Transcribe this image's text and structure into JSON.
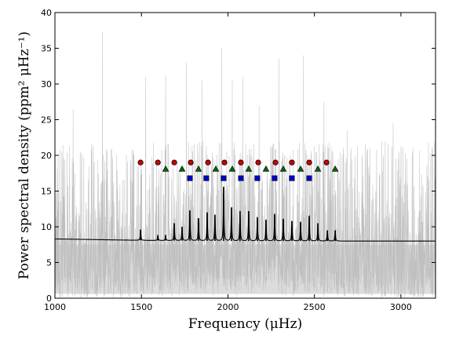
{
  "chart_data": {
    "type": "line",
    "title": "",
    "xlabel": "Frequency (μHz)",
    "ylabel": "Power spectral density (ppm² μHz⁻¹)",
    "xlim": [
      1000,
      3200
    ],
    "ylim": [
      0,
      40
    ],
    "x_ticks": [
      1000,
      1500,
      2000,
      2500,
      3000
    ],
    "y_ticks": [
      0,
      5,
      10,
      15,
      20,
      25,
      30,
      35,
      40
    ],
    "grid": false,
    "legend": "none",
    "series": [
      {
        "kind": "noise_spectrum",
        "color": "#bfbfbf",
        "description_values": {
          "baseline_level": 8.0,
          "typical_upper_envelope": 22,
          "spikes": [
            {
              "x": 1275,
              "y": 37.3
            },
            {
              "x": 1105,
              "y": 26.5
            },
            {
              "x": 1525,
              "y": 31.0
            },
            {
              "x": 1640,
              "y": 31.2
            },
            {
              "x": 1760,
              "y": 33.0
            },
            {
              "x": 1850,
              "y": 30.5
            },
            {
              "x": 1965,
              "y": 35.0
            },
            {
              "x": 2025,
              "y": 30.5
            },
            {
              "x": 2085,
              "y": 31.0
            },
            {
              "x": 2180,
              "y": 27.0
            },
            {
              "x": 2295,
              "y": 33.5
            },
            {
              "x": 2435,
              "y": 34.0
            },
            {
              "x": 2555,
              "y": 27.5
            },
            {
              "x": 2690,
              "y": 23.5
            },
            {
              "x": 2955,
              "y": 24.5
            },
            {
              "x": 3180,
              "y": 21.0
            }
          ]
        }
      },
      {
        "kind": "fit_model",
        "color": "#000000",
        "background": [
          {
            "x": 1000,
            "y": 8.3
          },
          {
            "x": 1500,
            "y": 8.1
          },
          {
            "x": 2000,
            "y": 8.0
          },
          {
            "x": 2600,
            "y": 8.0
          },
          {
            "x": 3200,
            "y": 8.0
          }
        ],
        "peaks": [
          {
            "x": 1495,
            "y": 9.6
          },
          {
            "x": 1595,
            "y": 8.8
          },
          {
            "x": 1640,
            "y": 8.8
          },
          {
            "x": 1690,
            "y": 10.5
          },
          {
            "x": 1735,
            "y": 10.0
          },
          {
            "x": 1780,
            "y": 12.3
          },
          {
            "x": 1830,
            "y": 11.2
          },
          {
            "x": 1880,
            "y": 12.0
          },
          {
            "x": 1925,
            "y": 11.7
          },
          {
            "x": 1975,
            "y": 15.6
          },
          {
            "x": 2020,
            "y": 12.7
          },
          {
            "x": 2070,
            "y": 12.2
          },
          {
            "x": 2120,
            "y": 12.2
          },
          {
            "x": 2170,
            "y": 11.3
          },
          {
            "x": 2220,
            "y": 11.0
          },
          {
            "x": 2270,
            "y": 11.8
          },
          {
            "x": 2320,
            "y": 11.1
          },
          {
            "x": 2370,
            "y": 10.8
          },
          {
            "x": 2420,
            "y": 10.7
          },
          {
            "x": 2470,
            "y": 11.5
          },
          {
            "x": 2520,
            "y": 10.5
          },
          {
            "x": 2575,
            "y": 9.5
          },
          {
            "x": 2620,
            "y": 9.5
          }
        ]
      }
    ],
    "markers": [
      {
        "shape": "circle",
        "color": "#cc0000",
        "y": 19.0,
        "x": [
          1495,
          1595,
          1690,
          1785,
          1885,
          1980,
          2075,
          2175,
          2275,
          2370,
          2470,
          2570
        ]
      },
      {
        "shape": "triangle",
        "color": "#006600",
        "y": 18.1,
        "x": [
          1640,
          1735,
          1830,
          1930,
          2025,
          2120,
          2220,
          2320,
          2420,
          2520,
          2620
        ]
      },
      {
        "shape": "square",
        "color": "#0000cc",
        "y": 16.8,
        "x": [
          1780,
          1875,
          1975,
          2075,
          2170,
          2270,
          2370,
          2470
        ]
      }
    ]
  }
}
